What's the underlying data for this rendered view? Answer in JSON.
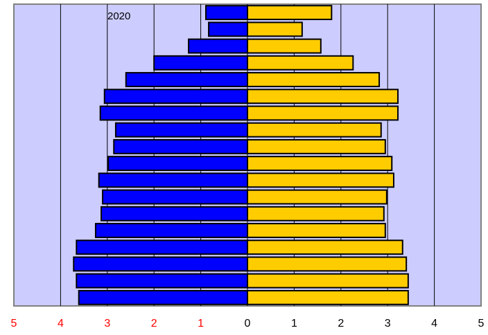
{
  "chart_data": {
    "type": "pyramid",
    "annotation": "2020",
    "series": [
      {
        "color": "#0000ff",
        "values": [
          0.89,
          0.83,
          1.26,
          2.0,
          2.6,
          3.06,
          3.15,
          2.82,
          2.86,
          2.98,
          3.18,
          3.1,
          3.13,
          3.25,
          3.66,
          3.72,
          3.66,
          3.61
        ]
      },
      {
        "color": "#ffcc00",
        "values": [
          1.8,
          1.17,
          1.57,
          2.26,
          2.82,
          3.22,
          3.22,
          2.86,
          2.95,
          3.09,
          3.13,
          2.98,
          2.92,
          2.95,
          3.32,
          3.4,
          3.44,
          3.44
        ]
      }
    ],
    "xlim": [
      -5,
      5
    ],
    "xticks": [
      {
        "value": -5,
        "label": "5"
      },
      {
        "value": -4,
        "label": "4"
      },
      {
        "value": -3,
        "label": "3"
      },
      {
        "value": -2,
        "label": "2"
      },
      {
        "value": -1,
        "label": "1"
      },
      0,
      1,
      2,
      3,
      4,
      5
    ],
    "grid": true
  }
}
